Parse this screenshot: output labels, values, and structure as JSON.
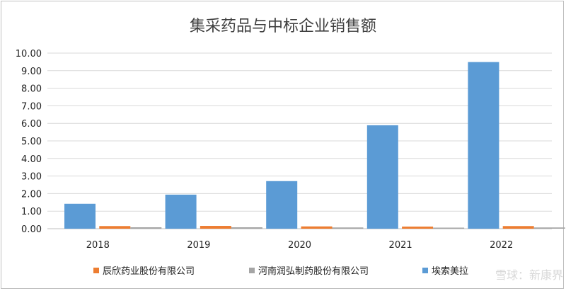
{
  "chart_data": {
    "type": "bar",
    "title": "集采药品与中标企业销售额",
    "categories": [
      "2018",
      "2019",
      "2020",
      "2021",
      "2022"
    ],
    "ylim": [
      0,
      10
    ],
    "yticks": [
      "0.00",
      "1.00",
      "2.00",
      "3.00",
      "4.00",
      "5.00",
      "6.00",
      "7.00",
      "8.00",
      "9.00",
      "10.00"
    ],
    "grid": true,
    "legend_position": "bottom",
    "series": [
      {
        "name": "辰欣药业股份有限公司",
        "color": "#ed7d31",
        "values": [
          0.15,
          0.16,
          0.13,
          0.12,
          0.15
        ]
      },
      {
        "name": "河南润弘制药股份有限公司",
        "color": "#a5a5a5",
        "values": [
          0.08,
          0.08,
          0.07,
          0.06,
          0.07
        ]
      },
      {
        "name": "埃索美拉",
        "color": "#5b9bd5",
        "values": [
          1.42,
          1.94,
          2.71,
          5.89,
          9.49
        ]
      }
    ]
  },
  "watermark": "雪球：新康界"
}
